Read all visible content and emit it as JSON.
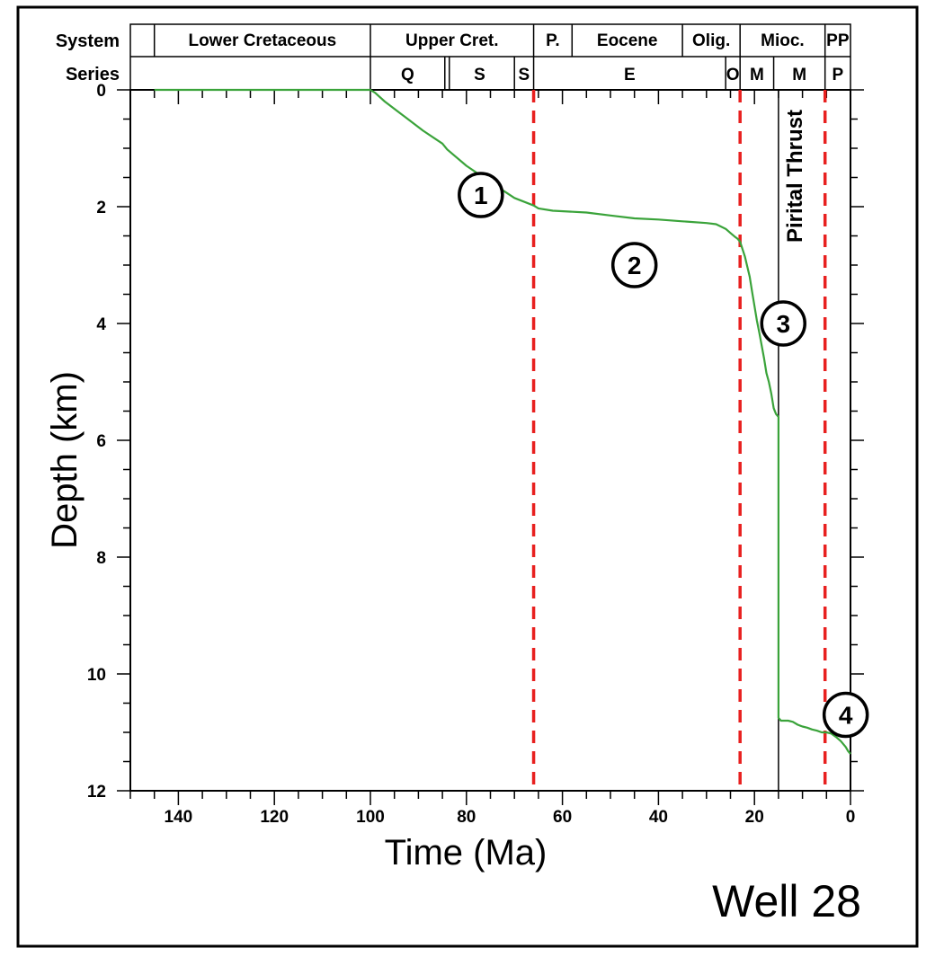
{
  "chart_data": {
    "type": "line",
    "title": "",
    "xlabel": "Time (Ma)",
    "ylabel": "Depth (km)",
    "xlim": [
      150,
      0
    ],
    "ylim": [
      12,
      0
    ],
    "x_ticks": [
      "140",
      "120",
      "100",
      "80",
      "60",
      "40",
      "20",
      "0"
    ],
    "y_ticks": [
      "0",
      "2",
      "4",
      "6",
      "8",
      "10",
      "12"
    ],
    "grid": false,
    "well_label": "Well 28",
    "series": [
      {
        "name": "",
        "color": "#3aa33a",
        "x": [
          145,
          100,
          99,
          97,
          93,
          89,
          85,
          84,
          80,
          75,
          70,
          66,
          65,
          62,
          55,
          50,
          45,
          40,
          35,
          30,
          28,
          26,
          25,
          24,
          23.5,
          23,
          22,
          21,
          20.5,
          20,
          19.5,
          19,
          18,
          17.5,
          17,
          16.5,
          16,
          15.5,
          15.2,
          15,
          15,
          14.5,
          13,
          12,
          11,
          10,
          9,
          8,
          7,
          6,
          5,
          4,
          3,
          2,
          1,
          0.5,
          0
        ],
        "y": [
          0,
          0,
          0.05,
          0.2,
          0.45,
          0.7,
          0.92,
          1.02,
          1.3,
          1.58,
          1.85,
          1.98,
          2.03,
          2.07,
          2.1,
          2.15,
          2.2,
          2.22,
          2.25,
          2.28,
          2.3,
          2.38,
          2.45,
          2.52,
          2.55,
          2.6,
          2.85,
          3.2,
          3.45,
          3.7,
          3.95,
          4.15,
          4.6,
          4.85,
          5.0,
          5.2,
          5.45,
          5.55,
          5.58,
          5.6,
          10.75,
          10.8,
          10.8,
          10.82,
          10.87,
          10.9,
          10.92,
          10.95,
          10.97,
          11.0,
          11.0,
          11.02,
          11.08,
          11.15,
          11.25,
          11.32,
          11.37
        ]
      }
    ],
    "boundaries": [
      {
        "x": 66,
        "color": "#e8201f",
        "style": "dashed"
      },
      {
        "x": 23,
        "color": "#e8201f",
        "style": "dashed"
      },
      {
        "x": 15,
        "color": "#000000",
        "style": "solid",
        "label": "Pirital Thrust"
      },
      {
        "x": 5.3,
        "color": "#e8201f",
        "style": "dashed"
      }
    ],
    "annotations": [
      {
        "text": "1",
        "x": 77,
        "y": 1.8
      },
      {
        "text": "2",
        "x": 45,
        "y": 3.0
      },
      {
        "text": "3",
        "x": 14,
        "y": 4.0
      },
      {
        "text": "4",
        "x": 1,
        "y": 10.7
      }
    ],
    "header": {
      "row1_label": "System",
      "row2_label": "Series",
      "system": [
        {
          "label": "",
          "from": 150,
          "to": 145
        },
        {
          "label": "Lower Cretaceous",
          "from": 145,
          "to": 100
        },
        {
          "label": "Upper Cret.",
          "from": 100,
          "to": 66
        },
        {
          "label": "P.",
          "from": 66,
          "to": 58
        },
        {
          "label": "Eocene",
          "from": 58,
          "to": 35
        },
        {
          "label": "Olig.",
          "from": 35,
          "to": 23
        },
        {
          "label": "Mioc.",
          "from": 23,
          "to": 5.3
        },
        {
          "label": "PP",
          "from": 5.3,
          "to": 0
        }
      ],
      "series": [
        {
          "label": "",
          "from": 150,
          "to": 100
        },
        {
          "label": "Q",
          "from": 100,
          "to": 84.5
        },
        {
          "label": "S",
          "from": 84.5,
          "to": 70
        },
        {
          "label": "S",
          "from": 70,
          "to": 66
        },
        {
          "label": "E",
          "from": 66,
          "to": 26
        },
        {
          "label": "O",
          "from": 26,
          "to": 23
        },
        {
          "label": "M",
          "from": 23,
          "to": 16
        },
        {
          "label": "M",
          "from": 16,
          "to": 5.3
        },
        {
          "label": "P",
          "from": 5.3,
          "to": 0
        }
      ]
    }
  }
}
